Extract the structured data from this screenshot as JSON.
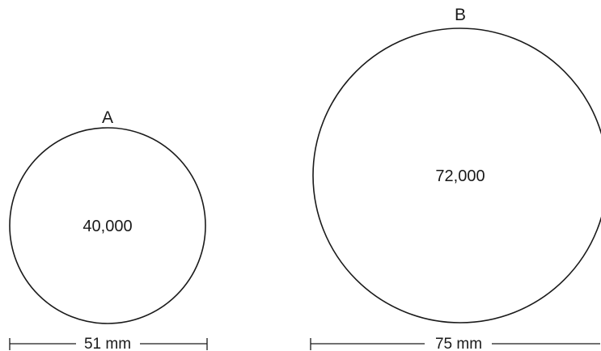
{
  "circles": [
    {
      "label": "A",
      "value": "40,000",
      "dimension": "51 mm"
    },
    {
      "label": "B",
      "value": "72,000",
      "dimension": "75 mm"
    }
  ]
}
